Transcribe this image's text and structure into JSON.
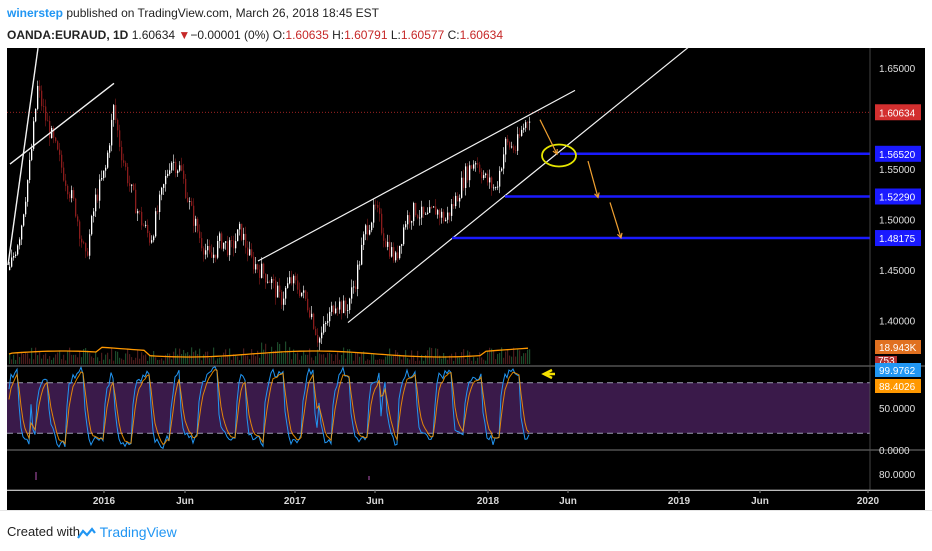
{
  "header": {
    "publisher": "winerstep",
    "published_text": "published on TradingView.com, March 26, 2018 18:45 EST",
    "symbol": "OANDA:EURAUD, 1D",
    "last": "1.60634",
    "arrow": "▼",
    "change": "−0.00001 (0%)",
    "o_label": "O:",
    "o_value": "1.60635",
    "h_label": "H:",
    "h_value": "1.60791",
    "l_label": "L:",
    "l_value": "1.60577",
    "c_label": "C:",
    "c_value": "1.60634"
  },
  "footer": {
    "created_with": "Created with",
    "brand": "TradingView",
    "logo_icon": "tradingview-cloud-icon"
  },
  "colors": {
    "background": "#000000",
    "candle_up": "#ffffff",
    "candle_down": "#8a1c1c",
    "channel": "#f2f2f2",
    "support": "#1a1aff",
    "arrow": "#f0a030",
    "ellipse": "#e6e600",
    "last_price": "#d32f2f",
    "rsi_fill": "#3a1a4a",
    "rsi_blue": "#2196f3",
    "rsi_orange": "#ff9800",
    "volume_ma": "#ff9800"
  },
  "chart_data": {
    "type": "candlestick",
    "price_axis": {
      "min": 1.355,
      "max": 1.67,
      "ticks": [
        "1.65000",
        "1.55000",
        "1.50000",
        "1.45000",
        "1.40000"
      ]
    },
    "x_axis": {
      "labels": [
        "2016",
        "Jun",
        "2017",
        "Jun",
        "2018",
        "Jun",
        "2019",
        "Jun",
        "2020"
      ]
    },
    "last_price": {
      "value": 1.60634,
      "label": "1.60634"
    },
    "levels": [
      {
        "value": 1.5652,
        "label": "1.56520"
      },
      {
        "value": 1.5229,
        "label": "1.52290"
      },
      {
        "value": 1.48175,
        "label": "1.48175"
      }
    ],
    "volume": {
      "label": "18.943K",
      "label2": "753"
    },
    "stoch": {
      "upper": 80,
      "lower": 20,
      "ticks": [
        "50.0000",
        "0.0000"
      ],
      "k_label": "99.9762",
      "d_label": "88.4026"
    },
    "lower_pane": {
      "ticks": [
        "80.0000"
      ]
    }
  }
}
